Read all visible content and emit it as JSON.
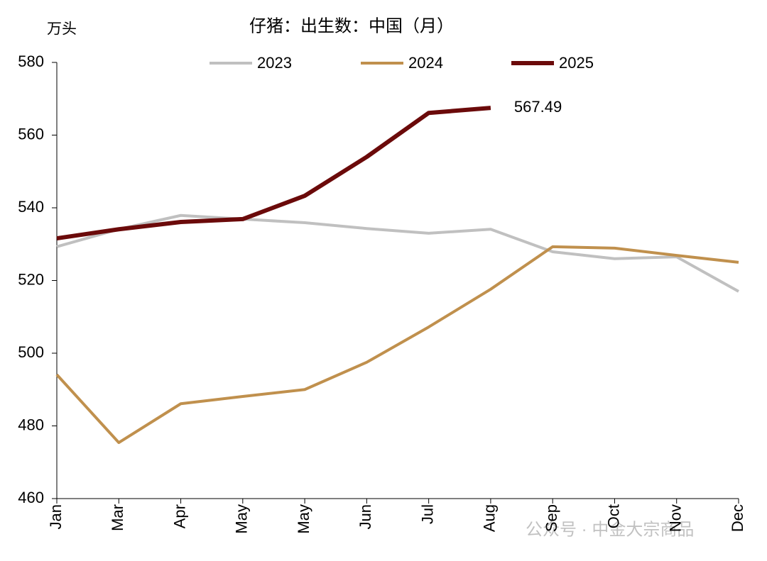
{
  "chart_data": {
    "type": "line",
    "title": "仔猪：出生数：中国（月）",
    "y_label": "万头",
    "watermark": "公众号 · 中金大宗商品",
    "categories": [
      "Jan",
      "Mar",
      "Apr",
      "May",
      "May",
      "Jun",
      "Jul",
      "Aug",
      "Sep",
      "Oct",
      "Nov",
      "Dec"
    ],
    "series": [
      {
        "name": "2023",
        "color": "#c0c0c0",
        "values": [
          529.3,
          534.1,
          537.9,
          536.9,
          535.9,
          534.3,
          533.0,
          534.1,
          527.9,
          526.0,
          526.5,
          517.0
        ]
      },
      {
        "name": "2024",
        "color": "#c0904d",
        "values": [
          494.1,
          475.4,
          486.1,
          488.1,
          490.0,
          497.5,
          507.2,
          517.6,
          529.3,
          528.9,
          526.9,
          525.0
        ]
      },
      {
        "name": "2025",
        "color": "#6b0a0a",
        "values": [
          531.6,
          534.1,
          536.1,
          536.9,
          543.3,
          554.0,
          566.1,
          567.49,
          null,
          null,
          null,
          null
        ],
        "value_labels": [
          null,
          null,
          null,
          null,
          null,
          null,
          null,
          "567.49",
          null,
          null,
          null,
          null
        ]
      }
    ],
    "ylim": [
      460,
      580
    ],
    "yticks": [
      460,
      480,
      500,
      520,
      540,
      560,
      580
    ],
    "legend": "top",
    "grid": false
  }
}
